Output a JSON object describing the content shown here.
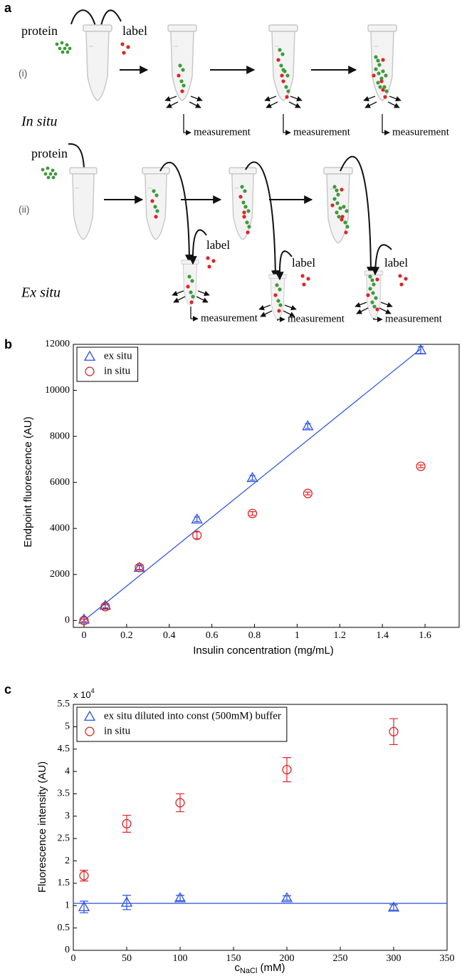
{
  "panels": [
    "a",
    "b",
    "c"
  ],
  "diagram": {
    "row_i": {
      "marker": "(i)",
      "title": "In situ",
      "protein": "protein",
      "label": "label",
      "measurements": [
        "measurement",
        "measurement",
        "measurement"
      ]
    },
    "row_ii": {
      "marker": "(ii)",
      "title": "Ex situ",
      "protein": "protein",
      "labels": [
        "label",
        "label",
        "label"
      ],
      "measurements": [
        "measurement",
        "measurement",
        "measurement"
      ]
    }
  },
  "chart_data": [
    {
      "type": "scatter",
      "xlabel": "Insulin concentration (mg/mL)",
      "ylabel": "Endpoint fluorescence (AU)",
      "xlim": [
        -0.05,
        1.76
      ],
      "ylim": [
        -300,
        12000
      ],
      "xticks": [
        0,
        0.2,
        0.4,
        0.6,
        0.8,
        1,
        1.2,
        1.4,
        1.6
      ],
      "yticks": [
        0,
        2000,
        4000,
        6000,
        8000,
        10000,
        12000
      ],
      "legend": "upper left",
      "series": [
        {
          "name": "ex situ",
          "color": "#2a4fe0",
          "marker": "triangle",
          "x": [
            0,
            0.1,
            0.26,
            0.53,
            0.79,
            1.05,
            1.58
          ],
          "values": [
            50,
            650,
            2300,
            4400,
            6200,
            8450,
            11750
          ],
          "errors": [
            100,
            100,
            100,
            100,
            100,
            100,
            150
          ]
        },
        {
          "name": "in situ",
          "color": "#e02424",
          "marker": "circle",
          "x": [
            0,
            0.1,
            0.26,
            0.53,
            0.79,
            1.05,
            1.58
          ],
          "values": [
            0,
            600,
            2300,
            3700,
            4650,
            5520,
            6700
          ],
          "errors": [
            60,
            80,
            80,
            150,
            80,
            60,
            60
          ]
        }
      ],
      "lines": [
        {
          "color": "#2a4fe0",
          "x": [
            0,
            1.58
          ],
          "values": [
            0,
            11800
          ]
        }
      ]
    },
    {
      "type": "scatter",
      "xlabel": {
        "text": "c",
        "sub": "NaCl",
        "rest": " (mM)"
      },
      "ylabel": "Fluorescence intensity (AU)",
      "scale_label": {
        "base": "x 10",
        "exp": "4"
      },
      "xlim": [
        0,
        350
      ],
      "ylim": [
        0,
        5.5
      ],
      "xticks": [
        0,
        50,
        100,
        150,
        200,
        250,
        300,
        350
      ],
      "yticks": [
        0,
        0.5,
        1,
        1.5,
        2,
        2.5,
        3,
        3.5,
        4,
        4.5,
        5,
        5.5
      ],
      "legend": "upper left",
      "series": [
        {
          "name": "ex situ diluted into const (500mM) buffer",
          "color": "#2a4fe0",
          "marker": "triangle",
          "x": [
            10,
            50,
            100,
            200,
            300
          ],
          "values": [
            0.97,
            1.07,
            1.17,
            1.17,
            0.96
          ],
          "errors": [
            0.13,
            0.16,
            0.06,
            0.05,
            0.06
          ]
        },
        {
          "name": "in situ",
          "color": "#e02424",
          "marker": "circle",
          "x": [
            10,
            50,
            100,
            200,
            300
          ],
          "values": [
            1.67,
            2.83,
            3.3,
            4.04,
            4.89
          ],
          "errors": [
            0.12,
            0.19,
            0.2,
            0.27,
            0.29
          ]
        }
      ],
      "lines": [
        {
          "color": "#2a4fe0",
          "x": [
            0,
            350
          ],
          "values": [
            1.05,
            1.05
          ]
        }
      ]
    }
  ]
}
